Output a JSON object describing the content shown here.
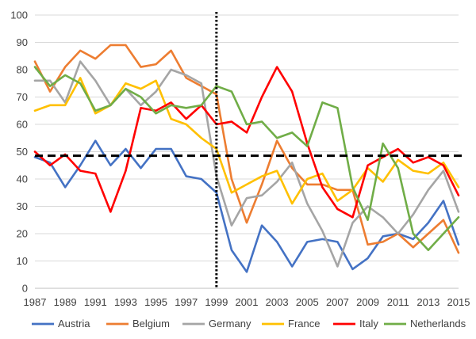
{
  "chart_data": {
    "type": "line",
    "title": "",
    "xlabel": "",
    "ylabel": "",
    "ylim": [
      0,
      100
    ],
    "y_ticks": [
      0,
      10,
      20,
      30,
      40,
      50,
      60,
      70,
      80,
      90,
      100
    ],
    "x": [
      1987,
      1988,
      1989,
      1990,
      1991,
      1992,
      1993,
      1994,
      1995,
      1996,
      1997,
      1998,
      1999,
      2000,
      2001,
      2002,
      2003,
      2004,
      2005,
      2006,
      2007,
      2008,
      2009,
      2010,
      2011,
      2012,
      2013,
      2014,
      2015
    ],
    "x_tick_labels": [
      "1987",
      "1989",
      "1991",
      "1993",
      "1995",
      "1997",
      "1999",
      "2001",
      "2003",
      "2005",
      "2007",
      "2009",
      "2011",
      "2013",
      "2015"
    ],
    "grid": "horizontal",
    "legend_position": "bottom",
    "reference_lines": {
      "vertical_dotted_x": 1999,
      "horizontal_dashed_y": 48.5
    },
    "series": [
      {
        "name": "Austria",
        "color": "#4472C4",
        "values": [
          48,
          46,
          37,
          45,
          54,
          45,
          51,
          44,
          51,
          51,
          41,
          40,
          35,
          14,
          6,
          23,
          17,
          8,
          17,
          18,
          17,
          7,
          11,
          19,
          20,
          18,
          24,
          32,
          16
        ]
      },
      {
        "name": "Belgium",
        "color": "#ED7D31",
        "values": [
          83,
          72,
          81,
          87,
          84,
          89,
          89,
          81,
          82,
          87,
          77,
          74,
          71,
          40,
          24,
          38,
          54,
          44,
          38,
          38,
          36,
          36,
          16,
          17,
          20,
          15,
          20,
          25,
          13
        ]
      },
      {
        "name": "Germany",
        "color": "#A5A5A5",
        "values": [
          76,
          76,
          68,
          83,
          76,
          67,
          73,
          67,
          72,
          80,
          78,
          75,
          41,
          23,
          33,
          34,
          39,
          46,
          31,
          21,
          8,
          24,
          30,
          26,
          20,
          27,
          36,
          43,
          28
        ]
      },
      {
        "name": "France",
        "color": "#FFC000",
        "values": [
          65,
          67,
          67,
          77,
          64,
          67,
          75,
          73,
          76,
          62,
          60,
          55,
          51,
          35,
          38,
          41,
          43,
          31,
          40,
          42,
          32,
          36,
          44,
          39,
          47,
          43,
          42,
          46,
          37
        ]
      },
      {
        "name": "Italy",
        "color": "#FF0000",
        "values": [
          50,
          45,
          49,
          43,
          42,
          28,
          43,
          66,
          65,
          68,
          62,
          67,
          60,
          61,
          57,
          70,
          81,
          72,
          53,
          37,
          29,
          26,
          45,
          48,
          51,
          46,
          48,
          45,
          34
        ]
      },
      {
        "name": "Netherlands",
        "color": "#70AD47",
        "values": [
          81,
          74,
          78,
          75,
          65,
          67,
          73,
          70,
          64,
          67,
          66,
          67,
          74,
          72,
          60,
          61,
          55,
          57,
          52,
          68,
          66,
          37,
          25,
          53,
          44,
          20,
          14,
          20,
          26
        ]
      }
    ]
  }
}
